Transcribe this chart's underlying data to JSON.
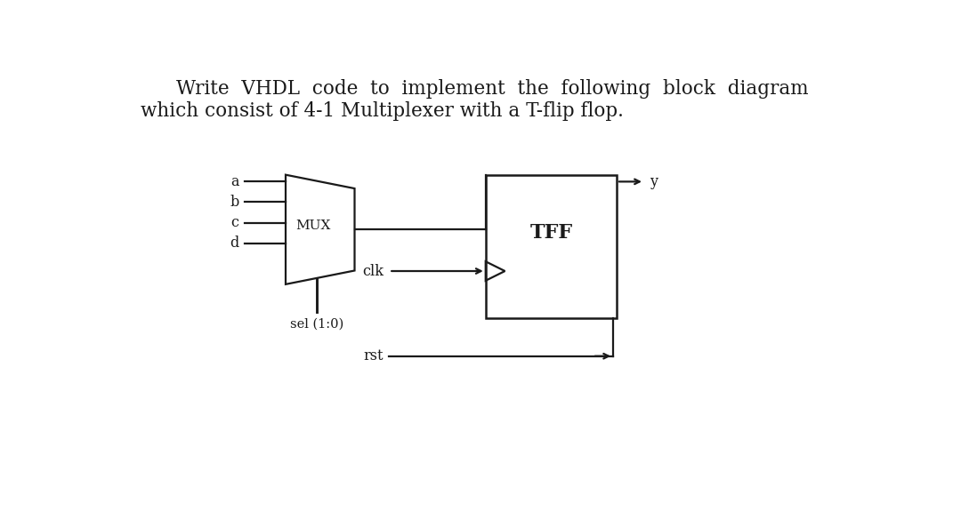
{
  "title_line1": "Write  VHDL  code  to  implement  the  following  block  diagram",
  "title_line2": "which consist of 4-1 Multiplexer with a T-flip flop.",
  "bg_color": "#ffffff",
  "text_color": "#1a1a1a",
  "mux_label": "MUX",
  "tff_label": "TFF",
  "inputs": [
    "a",
    "b",
    "c",
    "d"
  ],
  "sel_label": "sel (1:0)",
  "clk_label": "clk",
  "rst_label": "rst",
  "y_label": "y",
  "line_color": "#1a1a1a",
  "line_width": 1.6,
  "font_size_title": 15.5,
  "font_size_labels": 11.5,
  "font_size_mux": 11,
  "font_size_tff": 16,
  "font_size_sel": 10.5
}
